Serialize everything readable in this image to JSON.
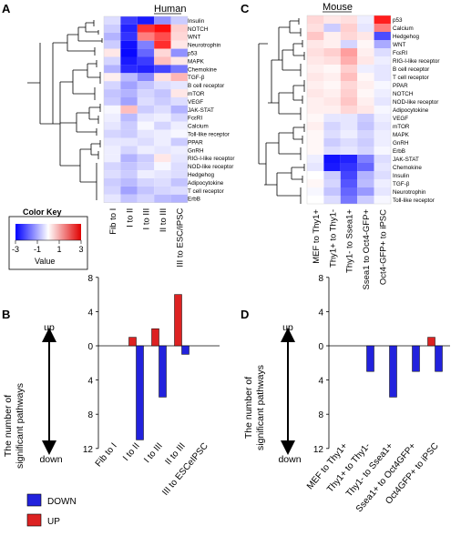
{
  "panels": {
    "A": "A",
    "B": "B",
    "C": "C",
    "D": "D"
  },
  "human": {
    "title": "Human",
    "pathways": [
      "Insulin",
      "NOTCH",
      "WNT",
      "Neurotrophin",
      "p53",
      "MAPK",
      "Chemokine",
      "TGF-β",
      "B cell receptor",
      "mTOR",
      "VEGF",
      "JAK-STAT",
      "FcεRI",
      "Calcium",
      "Toll-like receptor",
      "PPAR",
      "GnRH",
      "RIG-I-like receptor",
      "NOD-like receptor",
      "Hedgehog",
      "Adipocytokine",
      "T cell receptor",
      "ErbB"
    ],
    "columns": [
      "Fib to I",
      "I to II",
      "I to III",
      "II to III",
      "III to ESC/iPSC"
    ],
    "values": [
      [
        -0.4,
        -2.3,
        -2.7,
        -1.3,
        -0.6
      ],
      [
        -0.6,
        -2.6,
        2.5,
        3.0,
        0.6
      ],
      [
        -0.9,
        -2.4,
        1.6,
        2.2,
        0.5
      ],
      [
        -0.6,
        -2.8,
        -1.5,
        2.6,
        0.3
      ],
      [
        0.3,
        -2.9,
        -1.8,
        0.5,
        -1.3
      ],
      [
        -0.5,
        -2.7,
        -2.3,
        0.8,
        0.3
      ],
      [
        -0.9,
        -2.5,
        -2.6,
        -2.2,
        -1.6
      ],
      [
        0.2,
        -0.8,
        -1.4,
        0.4,
        0.9
      ],
      [
        -0.5,
        -1.1,
        -0.7,
        -0.4,
        -0.3
      ],
      [
        -0.7,
        -0.9,
        -0.5,
        -0.7,
        0.3
      ],
      [
        -0.6,
        -1.1,
        -0.4,
        -0.6,
        -0.4
      ],
      [
        -0.1,
        0.8,
        -0.6,
        -0.4,
        -0.9
      ],
      [
        -0.2,
        -0.8,
        -0.3,
        -0.2,
        -0.5
      ],
      [
        -0.3,
        -0.6,
        -0.1,
        -0.5,
        -0.2
      ],
      [
        -0.5,
        -0.6,
        -0.3,
        -0.2,
        -0.1
      ],
      [
        -0.3,
        -0.3,
        -0.4,
        -0.2,
        -0.6
      ],
      [
        -0.2,
        -0.5,
        -0.2,
        -0.3,
        -0.2
      ],
      [
        -0.2,
        -0.9,
        -0.6,
        0.3,
        -0.3
      ],
      [
        -0.5,
        -0.7,
        -0.5,
        -0.1,
        -0.4
      ],
      [
        -0.4,
        -0.6,
        -0.2,
        -0.3,
        -0.4
      ],
      [
        -0.6,
        -0.8,
        -0.5,
        -0.4,
        -0.7
      ],
      [
        -0.5,
        -1.1,
        -0.7,
        -0.5,
        -0.4
      ],
      [
        -0.3,
        -0.7,
        -0.5,
        -0.8,
        -0.9
      ]
    ]
  },
  "mouse": {
    "title": "Mouse",
    "pathways": [
      "p53",
      "Calcium",
      "Hedgehog",
      "WNT",
      "FcεRI",
      "RIG-I-like receptor",
      "B cell receptor",
      "T cell receptor",
      "PPAR",
      "NOTCH",
      "NOD-like receptor",
      "Adipocytokine",
      "VEGF",
      "mTOR",
      "MAPK",
      "GnRH",
      "ErbB",
      "JAK-STAT",
      "Chemokine",
      "Insulin",
      "TGF-β",
      "Neurotrophin",
      "Toll-like receptor"
    ],
    "columns": [
      "MEF to Thy1+",
      "Thy1+ to Thy1-",
      "Thy1- to Ssea1+",
      "Ssea1 to Oct4-GFP+",
      "Oct4-GFP+ to iPSC"
    ],
    "values": [
      [
        0.5,
        0.3,
        0.4,
        -0.2,
        2.8
      ],
      [
        0.4,
        -0.6,
        0.6,
        -0.3,
        1.6
      ],
      [
        0.7,
        0.2,
        0.5,
        0.3,
        -2.1
      ],
      [
        0.3,
        0.2,
        -0.5,
        0.1,
        -1.0
      ],
      [
        0.4,
        0.6,
        1.2,
        0.2,
        -0.4
      ],
      [
        0.3,
        0.4,
        1.0,
        0.3,
        -0.2
      ],
      [
        0.2,
        0.1,
        0.6,
        -0.2,
        -0.3
      ],
      [
        0.3,
        0.2,
        0.8,
        0.1,
        -0.3
      ],
      [
        0.2,
        0.1,
        0.5,
        0.2,
        -0.1
      ],
      [
        0.3,
        0.2,
        0.6,
        0.1,
        -0.2
      ],
      [
        0.2,
        0.3,
        0.7,
        0.2,
        -0.3
      ],
      [
        0.2,
        0.2,
        0.5,
        0.3,
        -0.1
      ],
      [
        0.1,
        -0.3,
        -0.3,
        -0.6,
        -0.2
      ],
      [
        0.2,
        -0.5,
        -0.3,
        -0.7,
        -0.3
      ],
      [
        0.1,
        -0.4,
        -0.2,
        -0.5,
        -0.2
      ],
      [
        0.1,
        -0.6,
        -0.4,
        -0.6,
        -0.2
      ],
      [
        0.1,
        -0.4,
        -0.3,
        -0.5,
        -0.1
      ],
      [
        -0.2,
        -2.8,
        -2.6,
        -1.5,
        -0.4
      ],
      [
        -0.3,
        -2.7,
        -2.4,
        -1.8,
        -0.3
      ],
      [
        0.0,
        -0.6,
        -2.2,
        -0.9,
        -0.4
      ],
      [
        0.1,
        -0.5,
        -2.0,
        -0.8,
        -0.2
      ],
      [
        -0.1,
        -0.7,
        -1.8,
        -1.2,
        -0.3
      ],
      [
        0.0,
        -0.4,
        -1.6,
        -0.6,
        -0.1
      ]
    ]
  },
  "color_key": {
    "title": "Color Key",
    "ticks": [
      "-3",
      "-1",
      "1",
      "3"
    ],
    "tick_values": [
      -3,
      -1,
      1,
      3
    ],
    "label": "Value",
    "low_color": "#0000ff",
    "mid_color": "#ffffff",
    "high_color": "#e00000"
  },
  "bar_axis": {
    "ylabel_line1": "The number of",
    "ylabel_line2": "significant pathways",
    "up_label": "up",
    "down_label": "down",
    "ticks": [
      "8",
      "4",
      "0",
      "4",
      "8",
      "12"
    ],
    "tick_values": [
      8,
      4,
      0,
      -4,
      -8,
      -12
    ]
  },
  "legend": {
    "down": "DOWN",
    "up": "UP",
    "down_color": "#2222dd",
    "up_color": "#dd2222"
  },
  "chart_data": [
    {
      "type": "heatmap",
      "title": "Human",
      "rows": "human.pathways",
      "columns": [
        "Fib to I",
        "I to II",
        "I to III",
        "II to III",
        "III to ESC/iPSC"
      ],
      "range": [
        -3,
        3
      ]
    },
    {
      "type": "heatmap",
      "title": "Mouse",
      "rows": "mouse.pathways",
      "columns": [
        "MEF to Thy1+",
        "Thy1+ to Thy1-",
        "Thy1- to Ssea1+",
        "Ssea1 to Oct4-GFP+",
        "Oct4-GFP+ to iPSC"
      ],
      "range": [
        -3,
        3
      ]
    },
    {
      "type": "bar",
      "categories": [
        "Fib to I",
        "I to II",
        "I to III",
        "II to III",
        "III to ESCeIPSC"
      ],
      "series": [
        {
          "name": "UP",
          "values": [
            0,
            1,
            2,
            6,
            0
          ]
        },
        {
          "name": "DOWN",
          "values": [
            0,
            -11,
            -6,
            -1,
            0
          ]
        }
      ],
      "ylim": [
        -12,
        8
      ]
    },
    {
      "type": "bar",
      "categories": [
        "MEF to Thy1+",
        "Thy1+ to Thy1-",
        "Thy1- to Ssea1+",
        "Ssea1+ to Oct4GFP+",
        "Oct4GFP+ to iPSC"
      ],
      "series": [
        {
          "name": "UP",
          "values": [
            0,
            0,
            0,
            0,
            1
          ]
        },
        {
          "name": "DOWN",
          "values": [
            0,
            -3,
            -6,
            -3,
            -3
          ]
        }
      ],
      "ylim": [
        -12,
        8
      ]
    }
  ]
}
